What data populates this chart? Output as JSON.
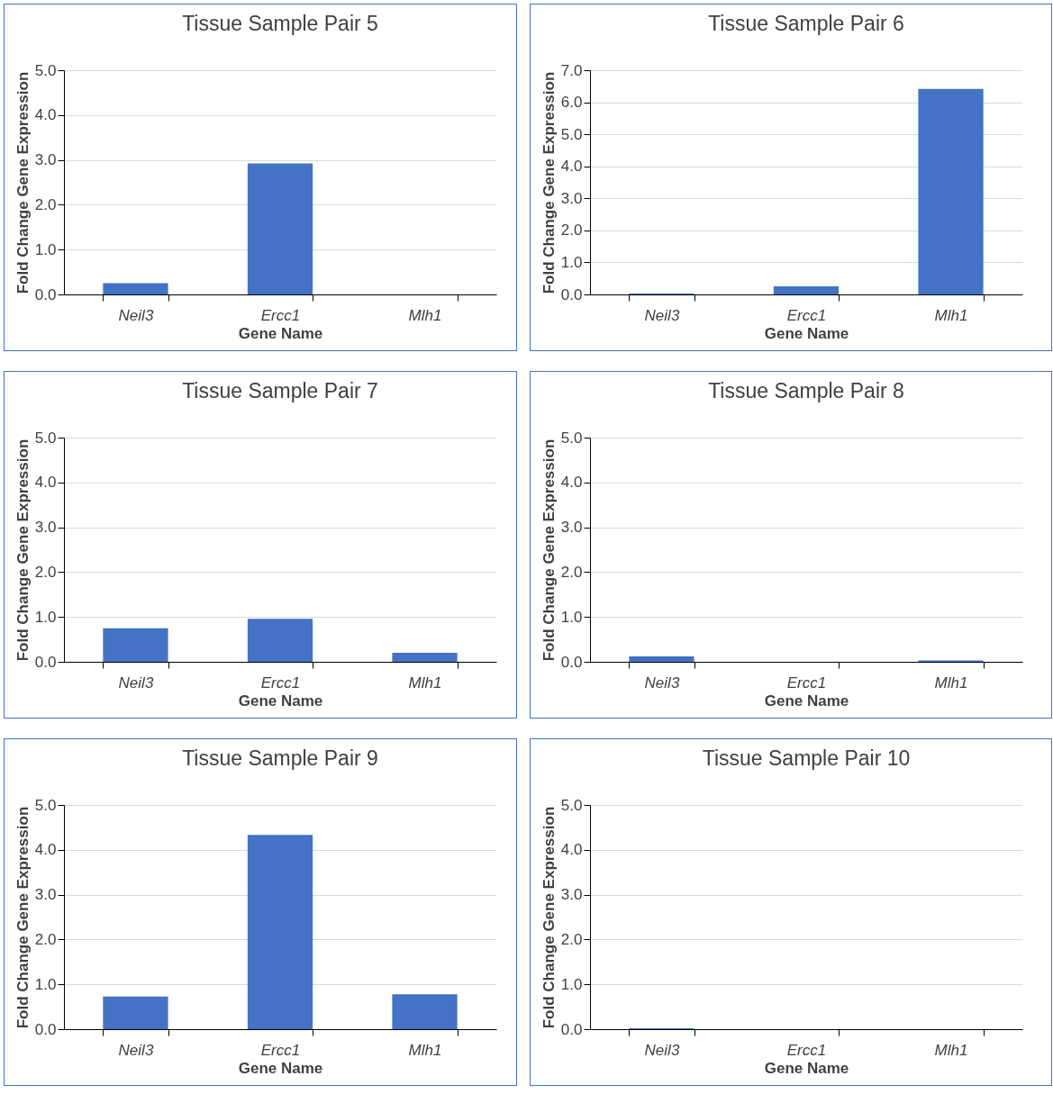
{
  "chart_data": [
    {
      "type": "bar",
      "title": "Tissue Sample Pair 5",
      "xlabel": "Gene Name",
      "ylabel": "Fold Change Gene Expression",
      "categories": [
        "Neil3",
        "Ercc1",
        "Mlh1"
      ],
      "values": [
        0.25,
        2.92,
        0
      ],
      "color": "#4472c4",
      "ylim": [
        0,
        5
      ],
      "yticks": [
        {
          "value": 0,
          "label": "0.0"
        },
        {
          "value": 1,
          "label": "1.0"
        },
        {
          "value": 2,
          "label": "2.0"
        },
        {
          "value": 3,
          "label": "3.0"
        },
        {
          "value": 4,
          "label": "4.0"
        },
        {
          "value": 5,
          "label": "5.0"
        }
      ],
      "grid": "y"
    },
    {
      "type": "bar",
      "title": "Tissue Sample Pair 6",
      "xlabel": "Gene Name",
      "ylabel": "Fold Change Gene Expression",
      "categories": [
        "Neil3",
        "Ercc1",
        "Mlh1"
      ],
      "values": [
        0.03,
        0.25,
        6.42
      ],
      "color": "#4472c4",
      "ylim": [
        0,
        7
      ],
      "yticks": [
        {
          "value": 0,
          "label": "0.0"
        },
        {
          "value": 1,
          "label": "1.0"
        },
        {
          "value": 2,
          "label": "2.0"
        },
        {
          "value": 3,
          "label": "3.0"
        },
        {
          "value": 4,
          "label": "4.0"
        },
        {
          "value": 5,
          "label": "5.0"
        },
        {
          "value": 6,
          "label": "6.0"
        },
        {
          "value": 7,
          "label": "7.0"
        }
      ],
      "grid": "y"
    },
    {
      "type": "bar",
      "title": "Tissue Sample Pair 7",
      "xlabel": "Gene Name",
      "ylabel": "Fold Change Gene Expression",
      "categories": [
        "Neil3",
        "Ercc1",
        "Mlh1"
      ],
      "values": [
        0.75,
        0.96,
        0.2
      ],
      "color": "#4472c4",
      "ylim": [
        0,
        5
      ],
      "yticks": [
        {
          "value": 0,
          "label": "0.0"
        },
        {
          "value": 1,
          "label": "1.0"
        },
        {
          "value": 2,
          "label": "2.0"
        },
        {
          "value": 3,
          "label": "3.0"
        },
        {
          "value": 4,
          "label": "4.0"
        },
        {
          "value": 5,
          "label": "5.0"
        }
      ],
      "grid": "y"
    },
    {
      "type": "bar",
      "title": "Tissue Sample Pair 8",
      "xlabel": "Gene Name",
      "ylabel": "Fold Change Gene Expression",
      "categories": [
        "Neil3",
        "Ercc1",
        "Mlh1"
      ],
      "values": [
        0.12,
        0,
        0.03
      ],
      "color": "#4472c4",
      "ylim": [
        0,
        5
      ],
      "yticks": [
        {
          "value": 0,
          "label": "0.0"
        },
        {
          "value": 1,
          "label": "1.0"
        },
        {
          "value": 2,
          "label": "2.0"
        },
        {
          "value": 3,
          "label": "3.0"
        },
        {
          "value": 4,
          "label": "4.0"
        },
        {
          "value": 5,
          "label": "5.0"
        }
      ],
      "grid": "y"
    },
    {
      "type": "bar",
      "title": "Tissue Sample Pair 9",
      "xlabel": "Gene Name",
      "ylabel": "Fold Change Gene Expression",
      "categories": [
        "Neil3",
        "Ercc1",
        "Mlh1"
      ],
      "values": [
        0.73,
        4.33,
        0.78
      ],
      "color": "#4472c4",
      "ylim": [
        0,
        5
      ],
      "yticks": [
        {
          "value": 0,
          "label": "0.0"
        },
        {
          "value": 1,
          "label": "1.0"
        },
        {
          "value": 2,
          "label": "2.0"
        },
        {
          "value": 3,
          "label": "3.0"
        },
        {
          "value": 4,
          "label": "4.0"
        },
        {
          "value": 5,
          "label": "5.0"
        }
      ],
      "grid": "y"
    },
    {
      "type": "bar",
      "title": "Tissue Sample Pair 10",
      "xlabel": "Gene Name",
      "ylabel": "Fold Change Gene Expression",
      "categories": [
        "Neil3",
        "Ercc1",
        "Mlh1"
      ],
      "values": [
        0.02,
        0,
        null
      ],
      "color": "#4472c4",
      "ylim": [
        0,
        5
      ],
      "yticks": [
        {
          "value": 0,
          "label": "0.0"
        },
        {
          "value": 1,
          "label": "1.0"
        },
        {
          "value": 2,
          "label": "2.0"
        },
        {
          "value": 3,
          "label": "3.0"
        },
        {
          "value": 4,
          "label": "4.0"
        },
        {
          "value": 5,
          "label": "5.0"
        }
      ],
      "grid": "y"
    }
  ]
}
